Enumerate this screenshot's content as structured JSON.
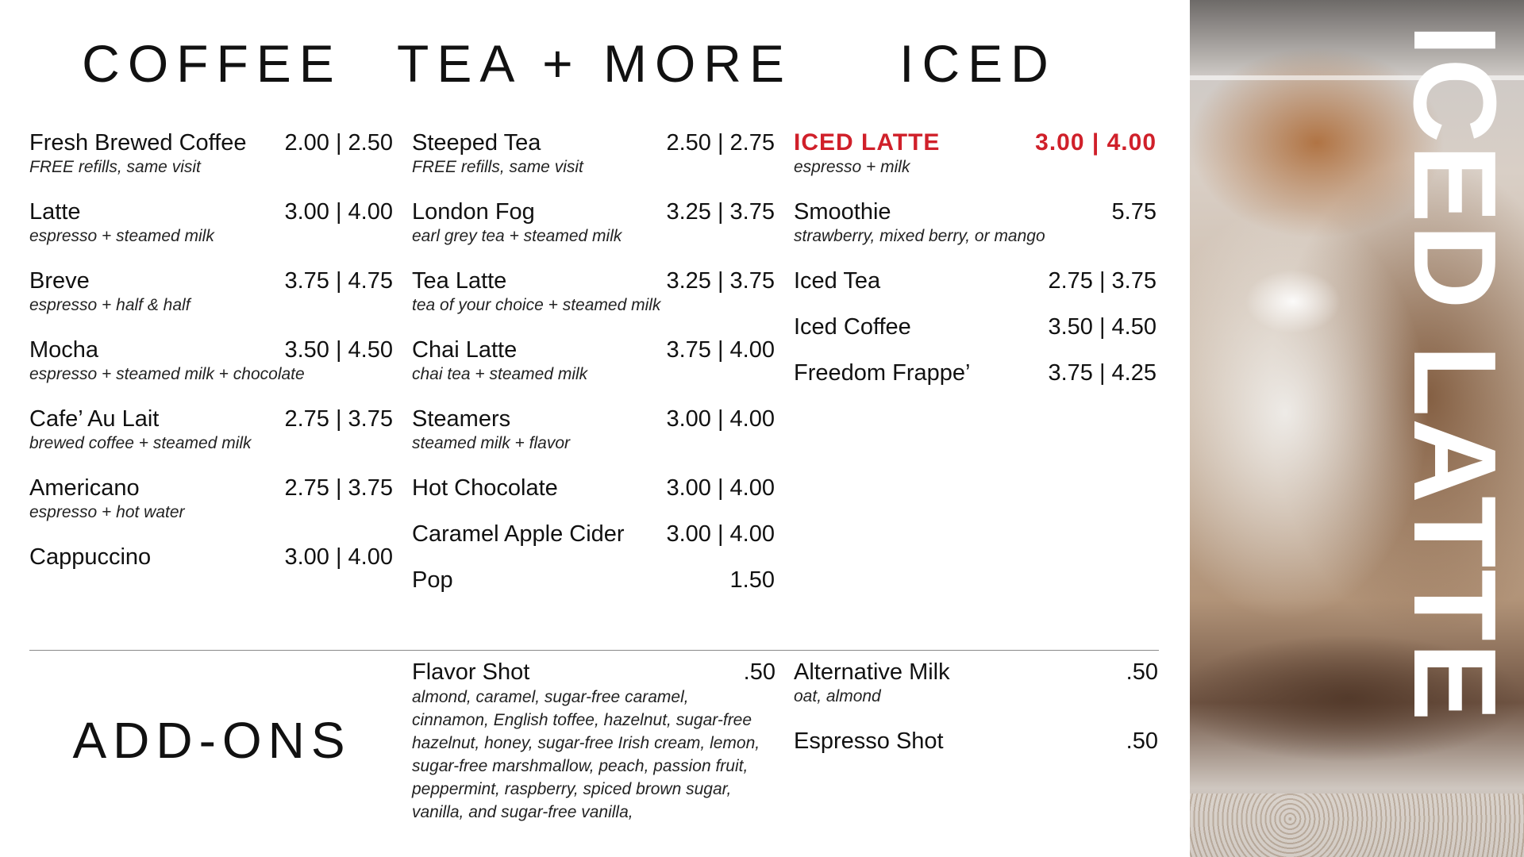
{
  "headings": {
    "coffee": "COFFEE",
    "tea": "TEA + MORE",
    "iced": "ICED",
    "addons": "ADD-ONS"
  },
  "accent_color": "#d0202a",
  "coffee": [
    {
      "name": "Fresh Brewed Coffee",
      "price": "2.00 | 2.50",
      "desc": "FREE refills, same visit"
    },
    {
      "name": "Latte",
      "price": "3.00 | 4.00",
      "desc": "espresso + steamed milk"
    },
    {
      "name": "Breve",
      "price": "3.75 | 4.75",
      "desc": "espresso + half & half"
    },
    {
      "name": "Mocha",
      "price": "3.50 | 4.50",
      "desc": "espresso + steamed milk + chocolate"
    },
    {
      "name": "Cafe’ Au Lait",
      "price": "2.75 | 3.75",
      "desc": "brewed coffee + steamed milk"
    },
    {
      "name": "Americano",
      "price": "2.75 | 3.75",
      "desc": "espresso + hot water"
    },
    {
      "name": "Cappuccino",
      "price": "3.00 | 4.00",
      "desc": ""
    }
  ],
  "tea": [
    {
      "name": "Steeped Tea",
      "price": "2.50 | 2.75",
      "desc": "FREE refills, same visit"
    },
    {
      "name": "London Fog",
      "price": "3.25 | 3.75",
      "desc": "earl grey tea + steamed milk"
    },
    {
      "name": "Tea Latte",
      "price": "3.25 | 3.75",
      "desc": "tea of your choice + steamed milk"
    },
    {
      "name": "Chai Latte",
      "price": "3.75 | 4.00",
      "desc": "chai tea + steamed milk"
    },
    {
      "name": "Steamers",
      "price": "3.00 | 4.00",
      "desc": "steamed milk + flavor"
    },
    {
      "name": "Hot Chocolate",
      "price": "3.00 | 4.00",
      "desc": ""
    },
    {
      "name": "Caramel Apple Cider",
      "price": "3.00 | 4.00",
      "desc": ""
    },
    {
      "name": "Pop",
      "price": "1.50",
      "desc": ""
    }
  ],
  "iced": [
    {
      "name": "ICED LATTE",
      "price": "3.00 | 4.00",
      "desc": "espresso + milk",
      "featured": true
    },
    {
      "name": "Smoothie",
      "price": "5.75",
      "desc": "strawberry, mixed berry, or mango"
    },
    {
      "name": "Iced Tea",
      "price": "2.75 | 3.75",
      "desc": ""
    },
    {
      "name": "Iced Coffee",
      "price": "3.50 | 4.50",
      "desc": ""
    },
    {
      "name": "Freedom Frappe’",
      "price": "3.75 | 4.25",
      "desc": ""
    }
  ],
  "addons_flavor": {
    "name": "Flavor Shot",
    "price": ".50",
    "desc_lines": [
      "almond, caramel, sugar-free caramel,",
      "cinnamon, English toffee, hazelnut, sugar-free",
      "hazelnut, honey, sugar-free Irish cream, lemon,",
      "sugar-free marshmallow, peach, passion fruit,",
      "peppermint, raspberry, spiced brown sugar,",
      "vanilla, and sugar-free vanilla,"
    ]
  },
  "addons_right": [
    {
      "name": "Alternative Milk",
      "price": ".50",
      "desc": "oat, almond"
    },
    {
      "name": "Espresso Shot",
      "price": ".50",
      "desc": ""
    }
  ],
  "feature_banner": "ICED LATTE"
}
